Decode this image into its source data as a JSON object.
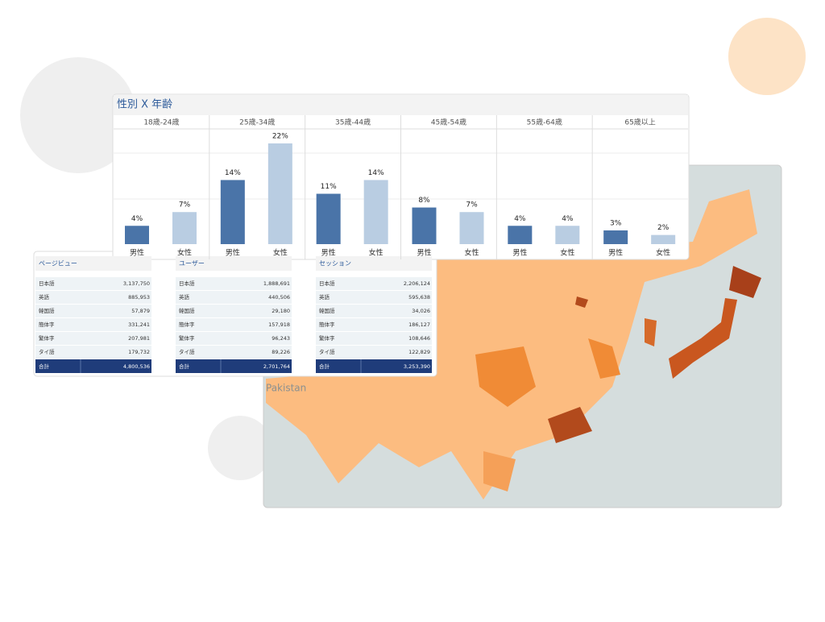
{
  "bar_panel": {
    "title": "性別 X 年齢",
    "series_names": [
      "男性",
      "女性"
    ],
    "groups": [
      {
        "label": "18歳-24歳",
        "values": [
          4,
          7
        ],
        "value_labels": [
          "4%",
          "7%"
        ]
      },
      {
        "label": "25歳-34歳",
        "values": [
          14,
          22
        ],
        "value_labels": [
          "14%",
          "22%"
        ]
      },
      {
        "label": "35歳-44歳",
        "values": [
          11,
          14
        ],
        "value_labels": [
          "11%",
          "14%"
        ]
      },
      {
        "label": "45歳-54歳",
        "values": [
          8,
          7
        ],
        "value_labels": [
          "8%",
          "7%"
        ]
      },
      {
        "label": "55歳-64歳",
        "values": [
          4,
          4
        ],
        "value_labels": [
          "4%",
          "4%"
        ]
      },
      {
        "label": "65歳以上",
        "values": [
          3,
          2
        ],
        "value_labels": [
          "3%",
          "2%"
        ]
      }
    ]
  },
  "tables": [
    {
      "header": "ページビュー",
      "rows": [
        [
          "日本語",
          "3,137,750"
        ],
        [
          "英語",
          "885,953"
        ],
        [
          "韓国語",
          "57,879"
        ],
        [
          "簡体字",
          "331,241"
        ],
        [
          "繁体字",
          "207,981"
        ],
        [
          "タイ語",
          "179,732"
        ]
      ],
      "total": [
        "合計",
        "4,800,536"
      ]
    },
    {
      "header": "ユーザー",
      "rows": [
        [
          "日本語",
          "1,888,691"
        ],
        [
          "英語",
          "440,506"
        ],
        [
          "韓国語",
          "29,180"
        ],
        [
          "簡体字",
          "157,918"
        ],
        [
          "繁体字",
          "96,243"
        ],
        [
          "タイ語",
          "89,226"
        ]
      ],
      "total": [
        "合計",
        "2,701,764"
      ]
    },
    {
      "header": "セッション",
      "rows": [
        [
          "日本語",
          "2,206,124"
        ],
        [
          "英語",
          "595,638"
        ],
        [
          "韓国語",
          "34,026"
        ],
        [
          "簡体字",
          "186,127"
        ],
        [
          "繁体字",
          "108,646"
        ],
        [
          "タイ語",
          "122,829"
        ]
      ],
      "total": [
        "合計",
        "3,253,390"
      ]
    }
  ],
  "map": {
    "label": "Pakistan"
  }
}
